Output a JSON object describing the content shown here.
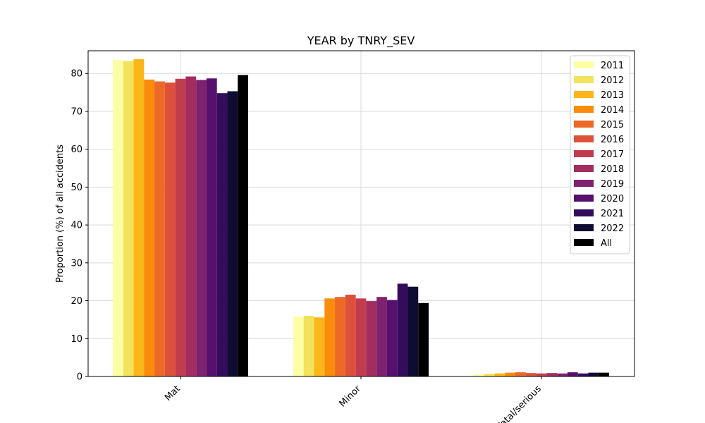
{
  "chart_data": {
    "type": "bar",
    "title": "YEAR by TNRY_SEV",
    "xlabel": "",
    "ylabel": "Proportion (%) of all accidents",
    "ylim": [
      0,
      86
    ],
    "yticks": [
      0,
      10,
      20,
      30,
      40,
      50,
      60,
      70,
      80
    ],
    "categories": [
      "Mat",
      "Minor",
      "Fatal/serious"
    ],
    "tick_rotation": 45,
    "grid": true,
    "legend_position": "top-right",
    "series": [
      {
        "name": "2011",
        "color": "#fcffa4",
        "values": [
          83.6,
          15.8,
          0.6
        ]
      },
      {
        "name": "2012",
        "color": "#f3e25c",
        "values": [
          83.3,
          16.0,
          0.7
        ]
      },
      {
        "name": "2013",
        "color": "#fbb61a",
        "values": [
          83.8,
          15.6,
          0.8
        ]
      },
      {
        "name": "2014",
        "color": "#f98c0a",
        "values": [
          78.4,
          20.6,
          1.0
        ]
      },
      {
        "name": "2015",
        "color": "#ec6928",
        "values": [
          77.9,
          21.0,
          1.1
        ]
      },
      {
        "name": "2016",
        "color": "#dd513a",
        "values": [
          77.6,
          21.6,
          0.9
        ]
      },
      {
        "name": "2017",
        "color": "#c23c50",
        "values": [
          78.6,
          20.6,
          0.8
        ]
      },
      {
        "name": "2018",
        "color": "#a32d5e",
        "values": [
          79.2,
          19.9,
          0.9
        ]
      },
      {
        "name": "2019",
        "color": "#7e2270",
        "values": [
          78.3,
          21.0,
          0.8
        ]
      },
      {
        "name": "2020",
        "color": "#57106e",
        "values": [
          78.7,
          20.2,
          1.1
        ]
      },
      {
        "name": "2021",
        "color": "#340c5c",
        "values": [
          74.8,
          24.5,
          0.8
        ]
      },
      {
        "name": "2022",
        "color": "#0f0c33",
        "values": [
          75.3,
          23.7,
          1.0
        ]
      },
      {
        "name": "All",
        "color": "#000000",
        "values": [
          79.6,
          19.4,
          1.0
        ]
      }
    ]
  }
}
